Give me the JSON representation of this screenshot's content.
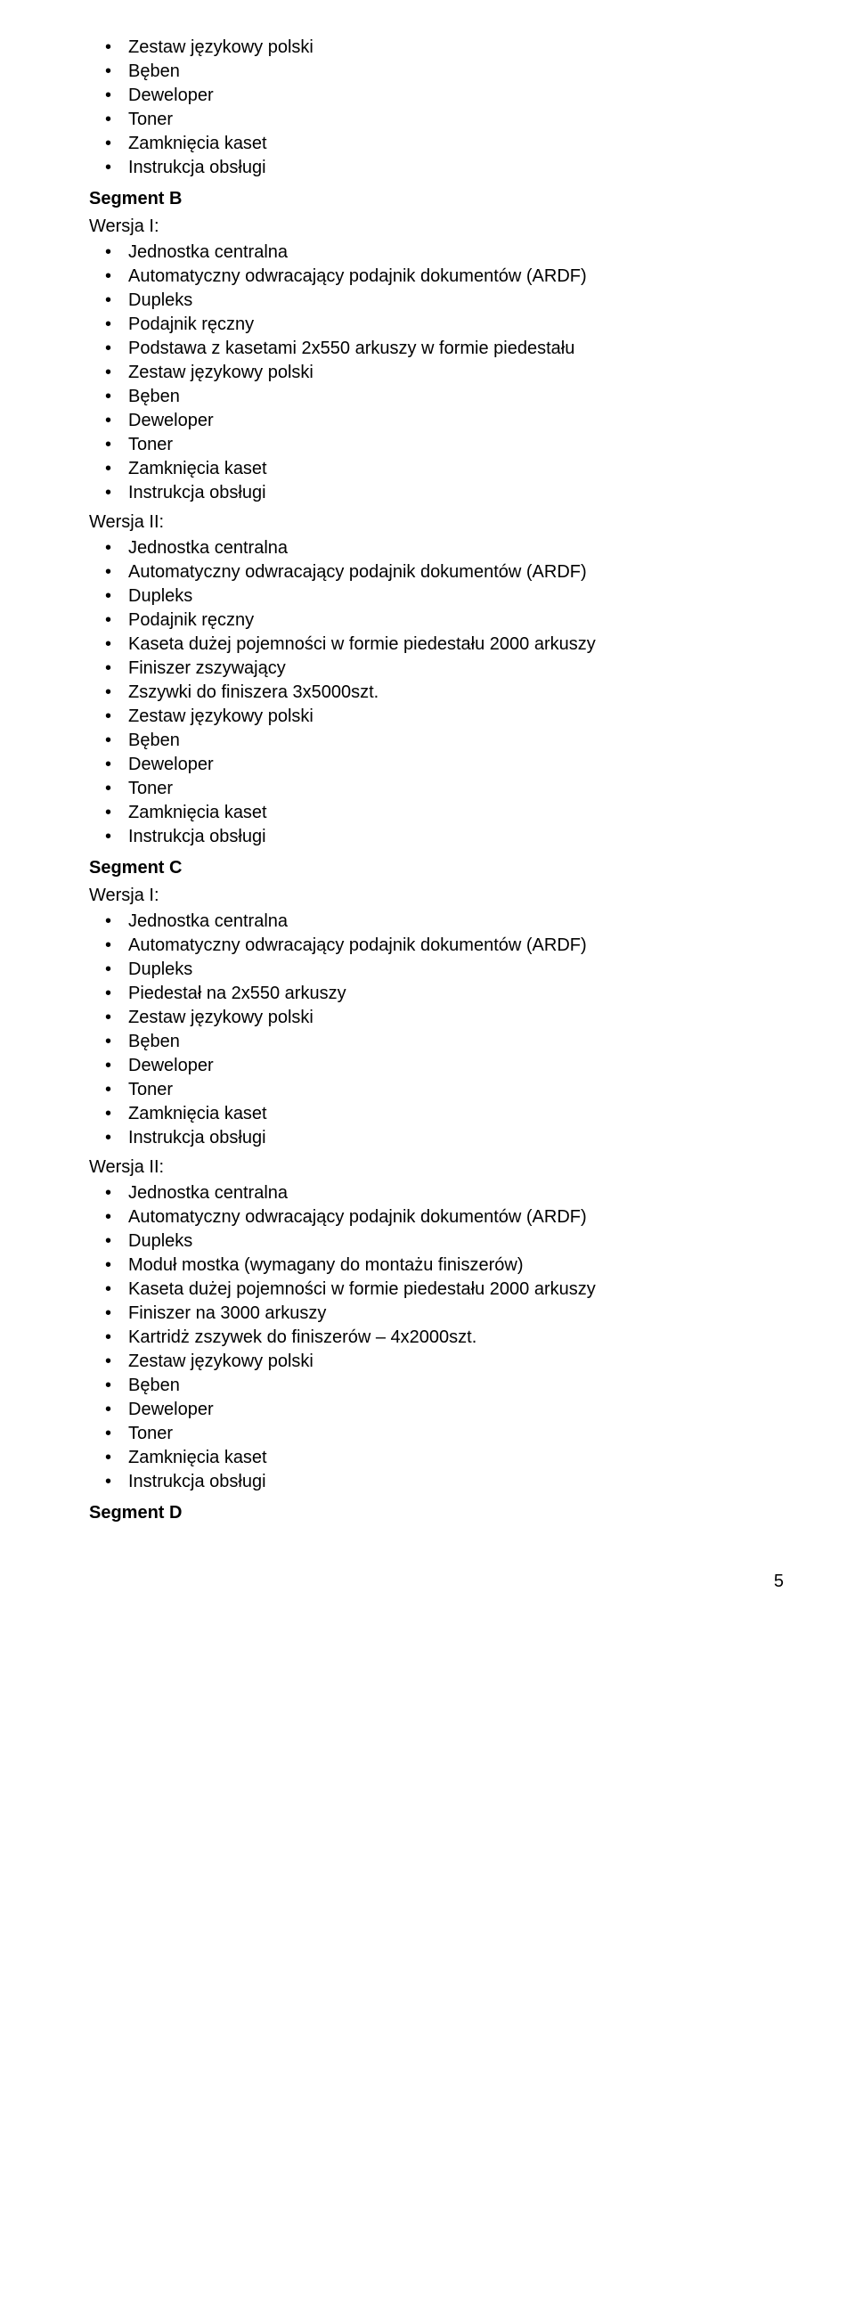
{
  "blocks": [
    {
      "type": "list",
      "items": [
        "Zestaw językowy polski",
        "Bęben",
        "Deweloper",
        "Toner",
        "Zamknięcia kaset",
        "Instrukcja obsługi"
      ]
    },
    {
      "type": "heading",
      "text": "Segment B"
    },
    {
      "type": "label",
      "text": "Wersja I:"
    },
    {
      "type": "list",
      "items": [
        "Jednostka centralna",
        "Automatyczny odwracający podajnik dokumentów (ARDF)",
        "Dupleks",
        "Podajnik ręczny",
        "Podstawa z kasetami 2x550 arkuszy w formie piedestału",
        "Zestaw językowy polski",
        "Bęben",
        "Deweloper",
        "Toner",
        "Zamknięcia kaset",
        "Instrukcja obsługi"
      ]
    },
    {
      "type": "label",
      "text": "Wersja II:"
    },
    {
      "type": "list",
      "items": [
        "Jednostka centralna",
        "Automatyczny odwracający podajnik dokumentów (ARDF)",
        "Dupleks",
        "Podajnik ręczny",
        "Kaseta dużej pojemności w formie piedestału 2000 arkuszy",
        "Finiszer zszywający",
        "Zszywki do finiszera 3x5000szt.",
        "Zestaw językowy polski",
        "Bęben",
        "Deweloper",
        "Toner",
        "Zamknięcia kaset",
        "Instrukcja obsługi"
      ]
    },
    {
      "type": "heading",
      "text": "Segment C"
    },
    {
      "type": "label",
      "text": "Wersja I:"
    },
    {
      "type": "list",
      "items": [
        "Jednostka centralna",
        "Automatyczny odwracający podajnik dokumentów (ARDF)",
        "Dupleks",
        "Piedestał na 2x550 arkuszy",
        "Zestaw językowy polski",
        "Bęben",
        "Deweloper",
        "Toner",
        "Zamknięcia kaset",
        "Instrukcja obsługi"
      ]
    },
    {
      "type": "label",
      "text": "Wersja II:"
    },
    {
      "type": "list",
      "items": [
        "Jednostka centralna",
        "Automatyczny odwracający podajnik dokumentów (ARDF)",
        "Dupleks",
        "Moduł mostka (wymagany do montażu finiszerów)",
        "Kaseta dużej pojemności w formie piedestału 2000 arkuszy",
        "Finiszer na 3000 arkuszy",
        "Kartridż zszywek do finiszerów – 4x2000szt.",
        "Zestaw językowy polski",
        "Bęben",
        "Deweloper",
        "Toner",
        "Zamknięcia kaset",
        "Instrukcja obsługi"
      ]
    },
    {
      "type": "heading",
      "text": "Segment D"
    }
  ],
  "page_number": "5"
}
